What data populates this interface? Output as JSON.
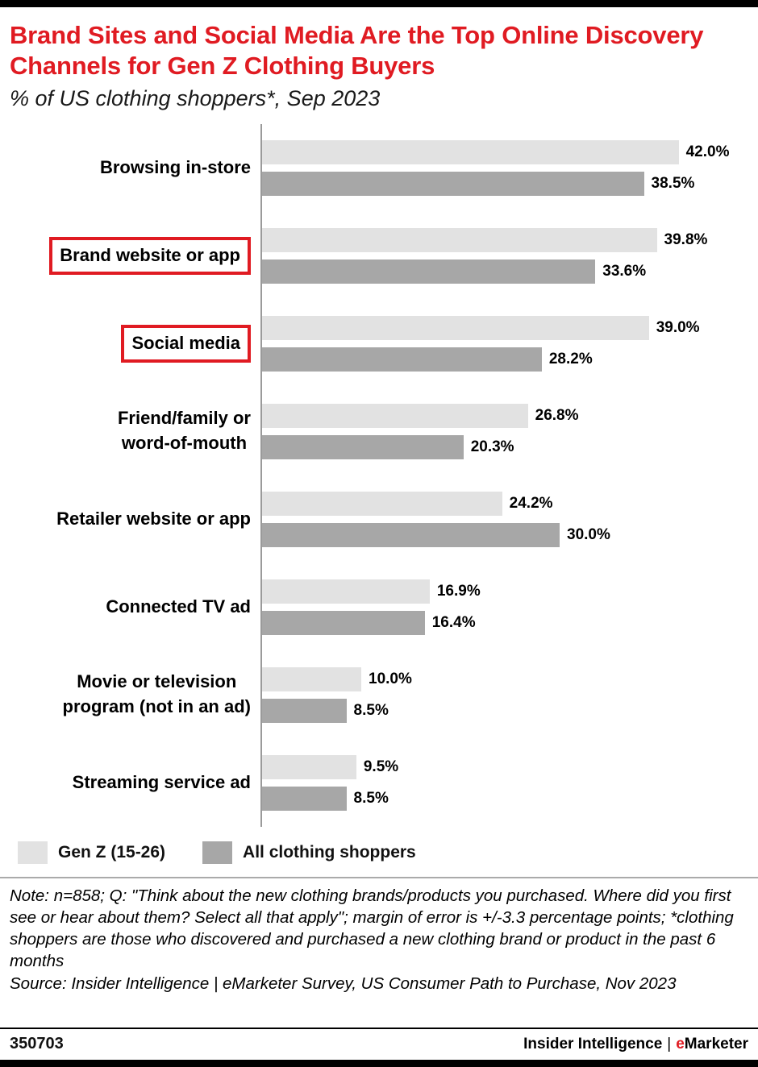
{
  "colors": {
    "accent_red": "#e01b22",
    "bar_genz": "#e2e2e2",
    "bar_all": "#a7a7a7",
    "axis_line": "#9a9a9a"
  },
  "header": {
    "title": "Brand Sites and Social Media Are the Top Online Discovery Channels for Gen Z Clothing Buyers",
    "subtitle": "% of US clothing shoppers*, Sep 2023"
  },
  "chart_data": {
    "type": "bar",
    "orientation": "horizontal",
    "title": "Brand Sites and Social Media Are the Top Online Discovery Channels for Gen Z Clothing Buyers",
    "subtitle": "% of US clothing shoppers*, Sep 2023",
    "categories": [
      "Browsing in-store",
      "Brand website or app",
      "Social media",
      "Friend/family or\nword-of-mouth",
      "Retailer website or app",
      "Connected TV ad",
      "Movie or television\nprogram (not in an ad)",
      "Streaming service ad"
    ],
    "highlighted_categories": [
      "Brand website or app",
      "Social media"
    ],
    "series": [
      {
        "name": "Gen Z (15-26)",
        "color": "#e2e2e2",
        "values": [
          42.0,
          39.8,
          39.0,
          26.8,
          24.2,
          16.9,
          10.0,
          9.5
        ]
      },
      {
        "name": "All clothing shoppers",
        "color": "#a7a7a7",
        "values": [
          38.5,
          33.6,
          28.2,
          20.3,
          30.0,
          16.4,
          8.5,
          8.5
        ]
      }
    ],
    "value_suffix": "%",
    "xlim": [
      0,
      50
    ],
    "grid": false,
    "legend_position": "bottom-left"
  },
  "footer": {
    "note": "Note: n=858; Q: \"Think about the new clothing brands/products you purchased. Where did you first see or hear about them? Select all that apply\"; margin of error is +/-3.3 percentage points; *clothing shoppers are those who discovered and purchased a new clothing brand or product in the past 6 months",
    "source": "Source: Insider Intelligence | eMarketer Survey, US Consumer Path to Purchase, Nov 2023",
    "chart_id": "350703",
    "brand": {
      "company": "Insider Intelligence",
      "separator": "|",
      "product_prefix": "e",
      "product_rest": "Marketer"
    }
  }
}
